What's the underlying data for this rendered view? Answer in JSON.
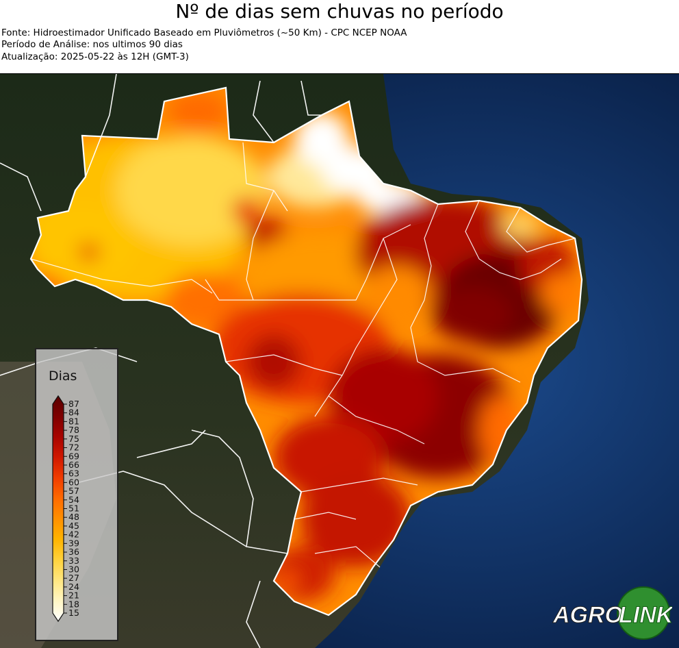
{
  "header": {
    "title": "Nº de dias sem chuvas no período",
    "source": "Fonte: Hidroestimador Unificado Baseado em Pluviômetros (~50 Km) - CPC NCEP NOAA",
    "period": "Período de Análise: nos ultimos 90 dias",
    "updated": "Atualização: 2025-05-22 às 12H (GMT-3)"
  },
  "legend": {
    "title": "Dias",
    "ticks": [
      "15",
      "18",
      "21",
      "24",
      "27",
      "30",
      "33",
      "36",
      "39",
      "42",
      "45",
      "48",
      "51",
      "54",
      "57",
      "60",
      "63",
      "66",
      "69",
      "72",
      "75",
      "78",
      "81",
      "84",
      "87"
    ],
    "min": 15,
    "max": 87,
    "colors": [
      "#ffffff",
      "#fff6c4",
      "#ffe680",
      "#ffd23c",
      "#ffb400",
      "#ff9000",
      "#ff6a00",
      "#f03c00",
      "#d01800",
      "#a80400",
      "#7e0000",
      "#5a0000"
    ]
  },
  "logo": {
    "text_left": "AGRO",
    "text_right": "LINK",
    "colors": {
      "green": "#2f8f2f",
      "dark_green": "#145c14",
      "white": "#ffffff"
    }
  },
  "map": {
    "ocean_color": "#0d2a5c",
    "land_color": "#1e2a1a",
    "border_color": "#ffffff"
  }
}
